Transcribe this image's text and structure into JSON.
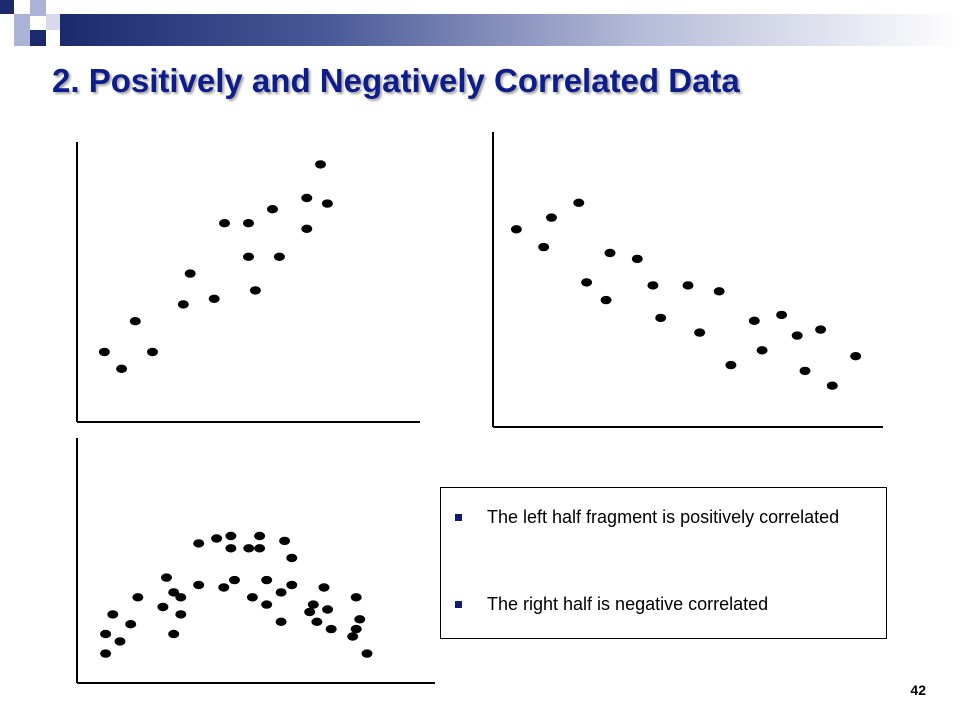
{
  "slide": {
    "title": "2. Positively and Negatively Correlated Data",
    "page_number": "42",
    "colors": {
      "title": "#0d1d8c",
      "header_bar_start": "#1a2a6c",
      "bullet": "#0d1d6c",
      "points": "#000000"
    }
  },
  "text_box": {
    "bullets": [
      {
        "text": "The left half fragment is positively correlated"
      },
      {
        "text": "The right half is negative correlated"
      }
    ]
  },
  "chart_data": [
    {
      "type": "scatter",
      "xlim": [
        0,
        100
      ],
      "ylim": [
        0,
        100
      ],
      "grid": false,
      "points": [
        {
          "x": 8,
          "y": 25
        },
        {
          "x": 13,
          "y": 19
        },
        {
          "x": 17,
          "y": 36
        },
        {
          "x": 22,
          "y": 25
        },
        {
          "x": 31,
          "y": 42
        },
        {
          "x": 33,
          "y": 53
        },
        {
          "x": 40,
          "y": 44
        },
        {
          "x": 43,
          "y": 71
        },
        {
          "x": 50,
          "y": 71
        },
        {
          "x": 50,
          "y": 59
        },
        {
          "x": 52,
          "y": 47
        },
        {
          "x": 57,
          "y": 76
        },
        {
          "x": 59,
          "y": 59
        },
        {
          "x": 67,
          "y": 69
        },
        {
          "x": 67,
          "y": 80
        },
        {
          "x": 73,
          "y": 78
        },
        {
          "x": 71,
          "y": 92
        }
      ]
    },
    {
      "type": "scatter",
      "xlim": [
        0,
        100
      ],
      "ylim": [
        0,
        100
      ],
      "grid": false,
      "points": [
        {
          "x": 6,
          "y": 67
        },
        {
          "x": 13,
          "y": 61
        },
        {
          "x": 15,
          "y": 71
        },
        {
          "x": 22,
          "y": 76
        },
        {
          "x": 24,
          "y": 49
        },
        {
          "x": 29,
          "y": 43
        },
        {
          "x": 30,
          "y": 59
        },
        {
          "x": 37,
          "y": 57
        },
        {
          "x": 41,
          "y": 48
        },
        {
          "x": 43,
          "y": 37
        },
        {
          "x": 50,
          "y": 48
        },
        {
          "x": 53,
          "y": 32
        },
        {
          "x": 58,
          "y": 46
        },
        {
          "x": 61,
          "y": 21
        },
        {
          "x": 67,
          "y": 36
        },
        {
          "x": 69,
          "y": 26
        },
        {
          "x": 74,
          "y": 38
        },
        {
          "x": 78,
          "y": 31
        },
        {
          "x": 80,
          "y": 19
        },
        {
          "x": 84,
          "y": 33
        },
        {
          "x": 87,
          "y": 14
        },
        {
          "x": 93,
          "y": 24
        }
      ]
    },
    {
      "type": "scatter",
      "xlim": [
        0,
        100
      ],
      "ylim": [
        0,
        100
      ],
      "grid": false,
      "points": [
        {
          "x": 8,
          "y": 12
        },
        {
          "x": 8,
          "y": 20
        },
        {
          "x": 10,
          "y": 28
        },
        {
          "x": 12,
          "y": 17
        },
        {
          "x": 15,
          "y": 24
        },
        {
          "x": 17,
          "y": 35
        },
        {
          "x": 24,
          "y": 31
        },
        {
          "x": 25,
          "y": 43
        },
        {
          "x": 27,
          "y": 37
        },
        {
          "x": 27,
          "y": 20
        },
        {
          "x": 29,
          "y": 35
        },
        {
          "x": 29,
          "y": 28
        },
        {
          "x": 34,
          "y": 40
        },
        {
          "x": 34,
          "y": 57
        },
        {
          "x": 39,
          "y": 59
        },
        {
          "x": 41,
          "y": 39
        },
        {
          "x": 43,
          "y": 60
        },
        {
          "x": 43,
          "y": 55
        },
        {
          "x": 44,
          "y": 42
        },
        {
          "x": 48,
          "y": 55
        },
        {
          "x": 49,
          "y": 35
        },
        {
          "x": 51,
          "y": 60
        },
        {
          "x": 51,
          "y": 55
        },
        {
          "x": 53,
          "y": 42
        },
        {
          "x": 53,
          "y": 32
        },
        {
          "x": 57,
          "y": 37
        },
        {
          "x": 57,
          "y": 25
        },
        {
          "x": 58,
          "y": 58
        },
        {
          "x": 60,
          "y": 51
        },
        {
          "x": 60,
          "y": 40
        },
        {
          "x": 65,
          "y": 29
        },
        {
          "x": 66,
          "y": 32
        },
        {
          "x": 67,
          "y": 25
        },
        {
          "x": 69,
          "y": 39
        },
        {
          "x": 70,
          "y": 30
        },
        {
          "x": 71,
          "y": 22
        },
        {
          "x": 77,
          "y": 19
        },
        {
          "x": 78,
          "y": 35
        },
        {
          "x": 78,
          "y": 22
        },
        {
          "x": 79,
          "y": 26
        },
        {
          "x": 81,
          "y": 12
        }
      ]
    }
  ]
}
